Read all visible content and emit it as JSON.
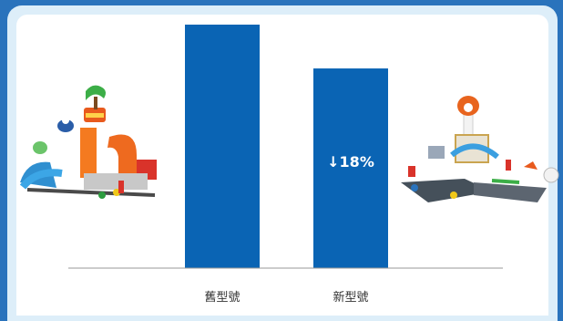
{
  "colors": {
    "frame": "#2a73bc",
    "panel": "#ddeef9",
    "bar": "#0a64b4",
    "axis": "#9a9a9a"
  },
  "chart_data": {
    "type": "bar",
    "title": "",
    "xlabel": "",
    "ylabel": "",
    "categories": [
      "舊型號",
      "新型號"
    ],
    "values": [
      100,
      82
    ],
    "ylim": [
      0,
      100
    ],
    "grid": false,
    "data_labels": [
      "",
      "↓18%"
    ],
    "bar_color": "#0a64b4",
    "images": [
      "old-toy-airport-playset",
      "new-toy-airport-playset"
    ]
  }
}
